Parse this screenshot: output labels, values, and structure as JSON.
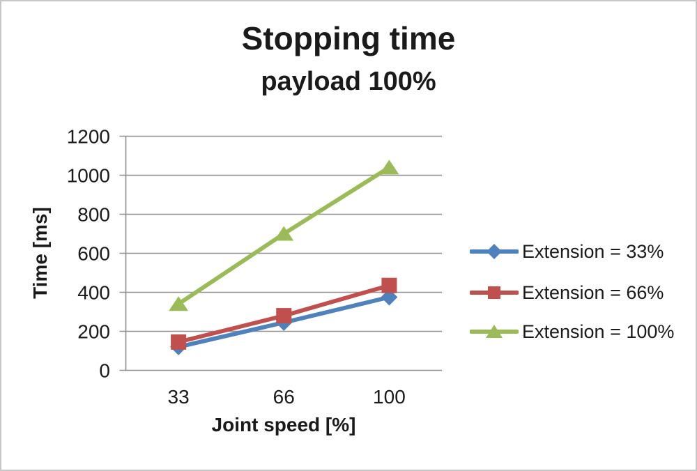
{
  "window": {
    "background": "#ffffff",
    "border_color": "#c6c6c6"
  },
  "chart_data": {
    "type": "line",
    "title": "Stopping time",
    "subtitle": "payload 100%",
    "xlabel": "Joint speed [%]",
    "ylabel": "Time [ms]",
    "categories": [
      "33",
      "66",
      "100"
    ],
    "yticks": [
      0,
      200,
      400,
      600,
      800,
      1000,
      1200
    ],
    "ylim": [
      0,
      1200
    ],
    "grid": "horizontal-gridlines-on",
    "gridline_color": "#8E8E8E",
    "axis_color": "#8E8E8E",
    "text_color": "#1a1a1a",
    "legend_position": "right",
    "series": [
      {
        "name": "Extension = 33%",
        "color": "#4F81BD",
        "marker": "diamond",
        "values": [
          120,
          245,
          375
        ]
      },
      {
        "name": "Extension = 66%",
        "color": "#C0504D",
        "marker": "square",
        "values": [
          145,
          280,
          435
        ]
      },
      {
        "name": "Extension = 100%",
        "color": "#9BBB59",
        "marker": "triangle",
        "values": [
          340,
          700,
          1040
        ]
      }
    ]
  }
}
